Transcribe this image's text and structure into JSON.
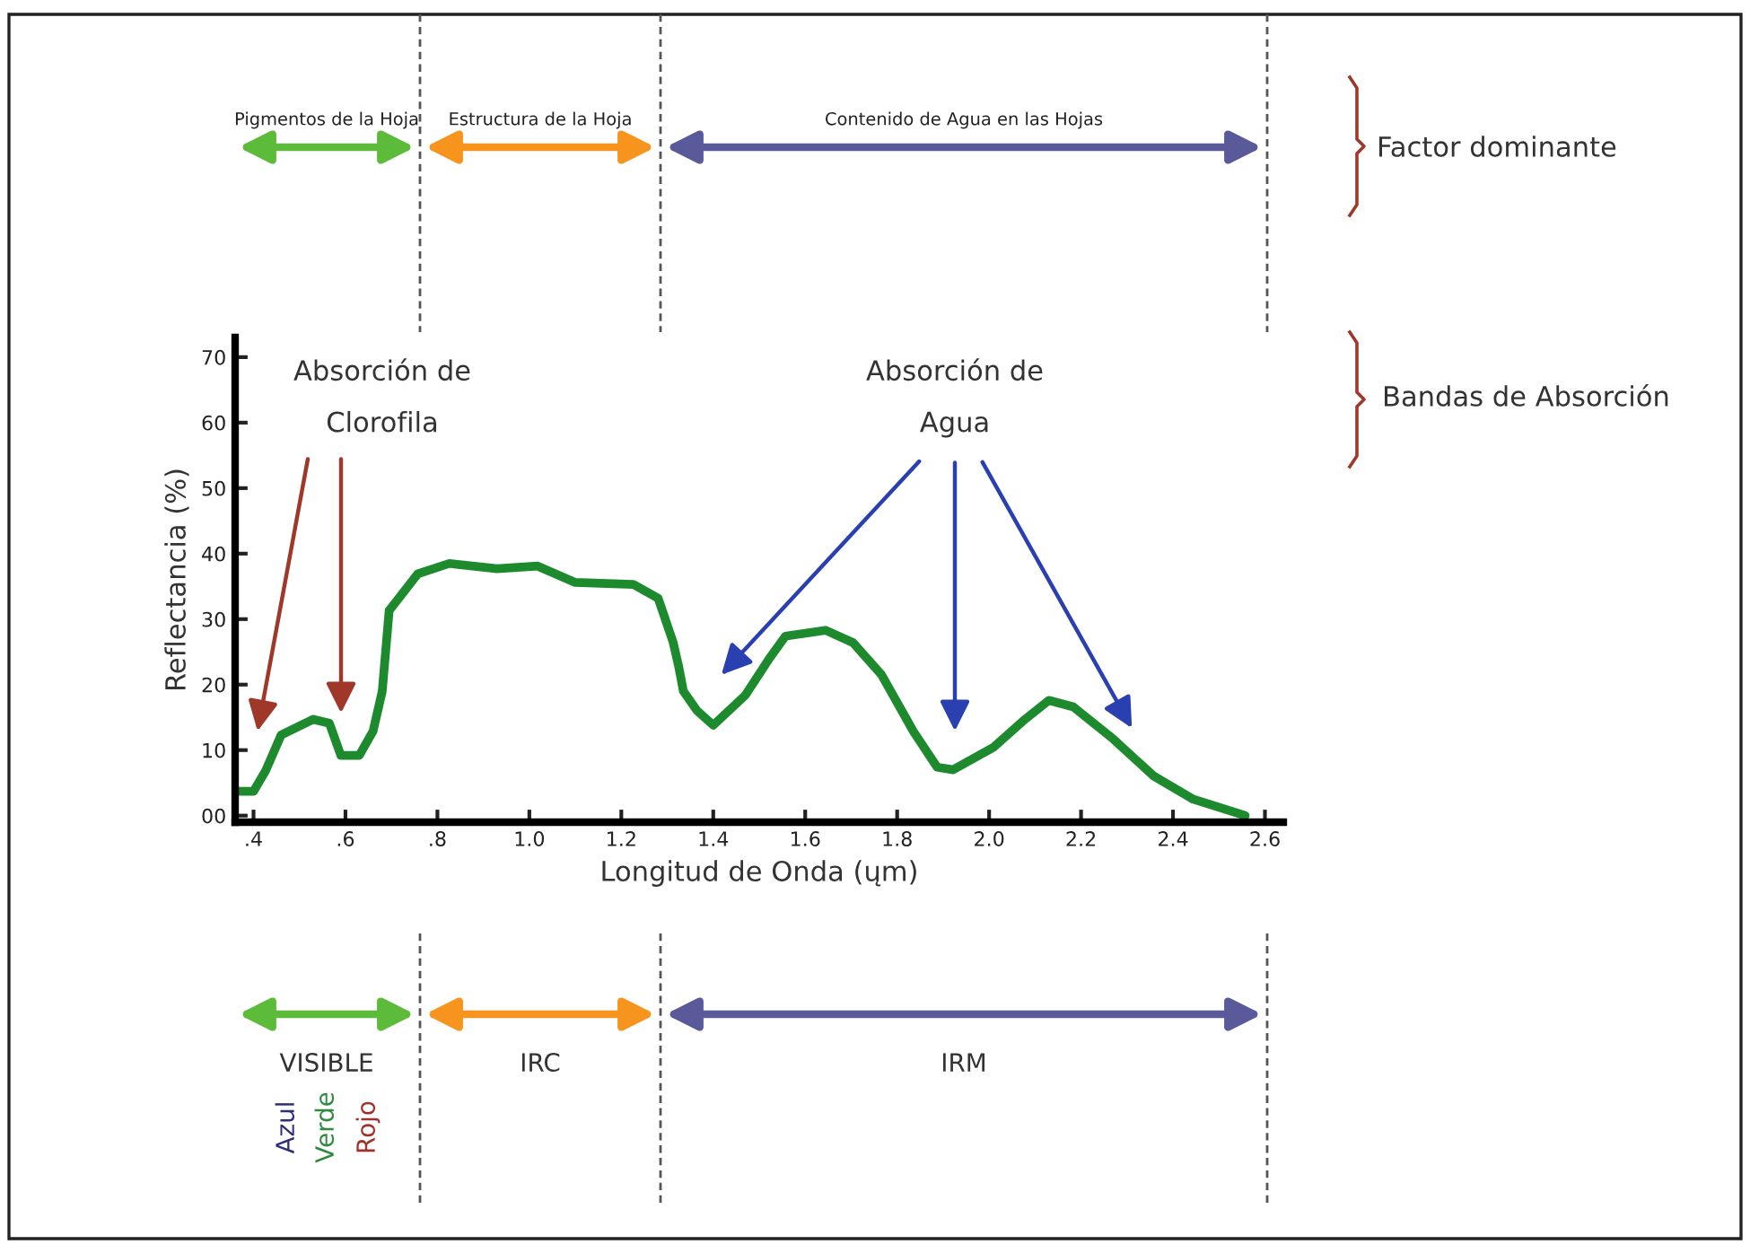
{
  "chart_data": {
    "type": "line",
    "xlabel": "Longitud de Onda (ųm)",
    "ylabel": "Reflectancia (%)",
    "x": [
      0.365,
      0.4,
      0.426,
      0.46,
      0.53,
      0.565,
      0.59,
      0.63,
      0.66,
      0.68,
      0.695,
      0.757,
      0.826,
      0.93,
      1.018,
      1.1,
      1.226,
      1.28,
      1.313,
      1.325,
      1.335,
      1.365,
      1.4,
      1.47,
      1.522,
      1.557,
      1.644,
      1.704,
      1.766,
      1.835,
      1.887,
      1.922,
      2.009,
      2.078,
      2.13,
      2.183,
      2.27,
      2.357,
      2.444,
      2.557
    ],
    "series": [
      {
        "color": "#1e8a2e",
        "values": [
          3.7,
          3.7,
          6.8,
          12.3,
          14.7,
          14.1,
          9.2,
          9.2,
          12.9,
          19,
          31.3,
          36.9,
          38.5,
          37.7,
          38.1,
          35.6,
          35.3,
          33.2,
          26.4,
          22.7,
          19,
          16,
          13.8,
          18.4,
          24,
          27.4,
          28.3,
          26.4,
          21.5,
          12.9,
          7.4,
          7,
          10.4,
          14.7,
          17.6,
          16.6,
          11.7,
          6.1,
          2.5,
          0
        ]
      }
    ],
    "xlim": [
      0.36,
      2.64
    ],
    "ylim": [
      -1,
      73
    ],
    "xticks": [
      {
        "value": 0.4,
        "label": ".4"
      },
      {
        "value": 0.6,
        "label": ".6"
      },
      {
        "value": 0.8,
        "label": ".8"
      },
      {
        "value": 1.0,
        "label": "1.0"
      },
      {
        "value": 1.2,
        "label": "1.2"
      },
      {
        "value": 1.4,
        "label": "1.4"
      },
      {
        "value": 1.6,
        "label": "1.6"
      },
      {
        "value": 1.8,
        "label": "1.8"
      },
      {
        "value": 2.0,
        "label": "2.0"
      },
      {
        "value": 2.2,
        "label": "2.2"
      },
      {
        "value": 2.4,
        "label": "2.4"
      },
      {
        "value": 2.6,
        "label": "2.6"
      }
    ],
    "yticks": [
      {
        "value": 0,
        "label": "00"
      },
      10,
      20,
      30,
      40,
      50,
      60,
      70
    ],
    "grid": false,
    "legend": false,
    "marker": "none",
    "line_style": "solid",
    "annotations": [
      "Absorción de\nClorofila",
      "Absorción de\nAgua",
      "Factor dominante",
      "Bandas de Absorción",
      "Azul",
      "Verde",
      "Rojo",
      "Pigmentos de la Hoja",
      "Estructura de la Hoja",
      "Contenido de Agua en las Hojas",
      "VISIBLE",
      "IRC",
      "IRM"
    ]
  }
}
